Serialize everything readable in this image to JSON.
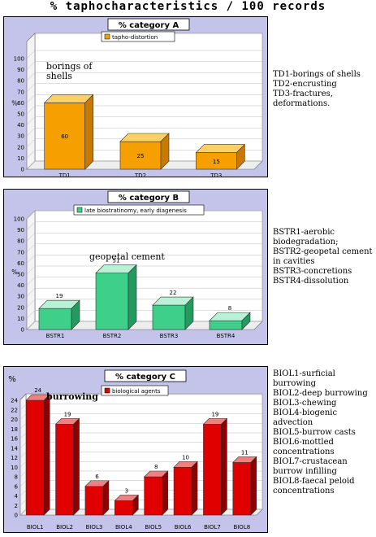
{
  "page_title": "% taphocharacteristics / 100 records",
  "colors": {
    "panel_bg": "#c4c4ea",
    "plot_bg": "#ffffff",
    "orange_front": "#f5a000",
    "orange_top": "#fcd068",
    "orange_side": "#c87a00",
    "green_front": "#3ecf8a",
    "green_top": "#b7f2d6",
    "green_side": "#229a60",
    "red_front": "#e00000",
    "red_top": "#f08080",
    "red_side": "#8e0000"
  },
  "chart_data": [
    {
      "type": "bar",
      "title": "% category A",
      "legend": "tapho-distortion",
      "legend_position": "top",
      "ylabel": "%",
      "ylim": [
        0,
        100
      ],
      "yticks": [
        0,
        10,
        20,
        30,
        40,
        50,
        60,
        70,
        80,
        90,
        100
      ],
      "grid": true,
      "categories": [
        "TD1",
        "TD2",
        "TD3"
      ],
      "values": [
        60,
        25,
        15
      ],
      "data_labels": [
        "60",
        "25",
        "15"
      ],
      "annotation": "borings of shells",
      "descriptions": [
        "TD1-borings of shells",
        "TD2-encrusting",
        "TD3-fractures, deformations."
      ]
    },
    {
      "type": "bar",
      "title": "% category B",
      "legend": "late biostratinomy, early diagenesis",
      "legend_position": "top",
      "ylabel": "%",
      "ylim": [
        0,
        100
      ],
      "yticks": [
        0,
        10,
        20,
        30,
        40,
        50,
        60,
        70,
        80,
        90,
        100
      ],
      "grid": true,
      "categories": [
        "BSTR1",
        "BSTR2",
        "BSTR3",
        "BSTR4"
      ],
      "values": [
        19,
        51,
        22,
        8
      ],
      "data_labels": [
        "19",
        "51",
        "22",
        "8"
      ],
      "annotation": "geopetal cement",
      "descriptions": [
        "BSTR1-aerobic biodegradation;",
        "BSTR2-geopetal cement in cavities",
        "BSTR3-concretions",
        "BSTR4-dissolution"
      ]
    },
    {
      "type": "bar",
      "title": "% category C",
      "legend": "biological agents",
      "legend_position": "top",
      "ylabel": "%",
      "ylim": [
        0,
        24
      ],
      "yticks": [
        0,
        2,
        4,
        6,
        8,
        10,
        12,
        14,
        16,
        18,
        20,
        22,
        24
      ],
      "grid": true,
      "categories": [
        "BIOL1",
        "BIOL2",
        "BIOL3",
        "BIOL4",
        "BIOL5",
        "BIOL6",
        "BIOL7",
        "BIOL8"
      ],
      "values": [
        24,
        19,
        6,
        3,
        8,
        10,
        19,
        11
      ],
      "data_labels": [
        "24",
        "19",
        "6",
        "3",
        "8",
        "10",
        "19",
        "11"
      ],
      "annotation": "burrowing",
      "descriptions": [
        "BIOL1-surficial burrowing",
        "BIOL2-deep burrowing",
        "BIOL3-chewing",
        "BIOL4-biogenic advection",
        "BIOL5-burrow casts",
        "BIOL6-mottled concentrations",
        "BIOL7-crustacean burrow infilling",
        "BIOL8-faecal peloid concentrations"
      ]
    }
  ]
}
